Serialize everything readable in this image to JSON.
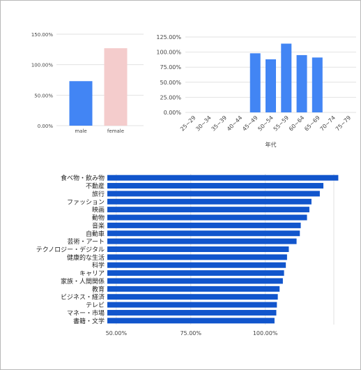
{
  "chart_data": [
    {
      "type": "bar",
      "categories": [
        "male",
        "female"
      ],
      "values": [
        73,
        127
      ],
      "ylim": [
        0,
        150
      ],
      "yticks": [
        "0.00%",
        "50.00%",
        "100.00%",
        "150.00%"
      ],
      "colors": [
        "#4285f4",
        "#f4cccc"
      ],
      "grid": true
    },
    {
      "type": "bar",
      "categories": [
        "25~29",
        "30~34",
        "35~39",
        "40~44",
        "45~49",
        "50~54",
        "55~59",
        "60~64",
        "65~69",
        "70~74",
        "75~79"
      ],
      "values": [
        0,
        0,
        0,
        0,
        98,
        88,
        114,
        95,
        91,
        0,
        0
      ],
      "ylim": [
        0,
        125
      ],
      "yticks": [
        "0.00%",
        "25.00%",
        "50.00%",
        "75.00%",
        "100.00%",
        "125.00%"
      ],
      "xlabel": "年代",
      "color": "#4285f4",
      "grid": true
    },
    {
      "type": "bar",
      "orientation": "horizontal",
      "categories": [
        "食べ物・飲み物",
        "不動産",
        "旅行",
        "ファッション",
        "映画",
        "動物",
        "音楽",
        "自動車",
        "芸術・アート",
        "テクノロジー・デジタル",
        "健康的な生活",
        "科学",
        "キャリア",
        "家族・人間関係",
        "教育",
        "ビジネス・経済",
        "テレビ",
        "マネー・市場",
        "書籍・文学"
      ],
      "values": [
        124.5,
        119.5,
        118.3,
        115.5,
        114.8,
        114.0,
        111.9,
        111.6,
        110.5,
        107.9,
        107.3,
        106.9,
        106.3,
        105.9,
        104.8,
        104.2,
        103.9,
        103.7,
        103.1
      ],
      "xlim": [
        47,
        123
      ],
      "xticks": [
        "50.00%",
        "75.00%",
        "100.00%"
      ],
      "color": "#1155cc",
      "grid": true
    }
  ]
}
